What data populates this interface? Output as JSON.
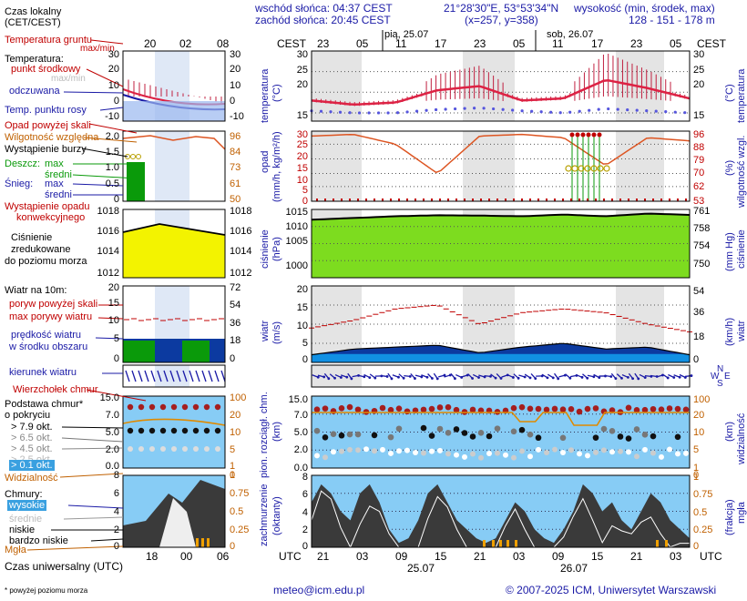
{
  "header": {
    "sunrise": "wschód słońca: 04:37 CEST",
    "sunset": "zachód słońca: 20:45 CEST",
    "coords": "21°28'30\"E, 53°53'34\"N",
    "grid": "(x=257, y=358)",
    "elevation_title": "wysokość (min, środek, max)",
    "elevation_values": "128 - 151 - 178 m",
    "local_time_label": "Czas lokalny",
    "local_time_zone": "(CET/CEST)",
    "tz": "CEST",
    "day1": "pią, 25.07",
    "day2": "sob, 26.07"
  },
  "left_legend": {
    "soil_temp": "Temperatura gruntu",
    "max_min": "max/min",
    "temperature": "Temperatura:",
    "mid_point": "punkt środkowy",
    "max_min2": "max/min",
    "felt": "odczuwana",
    "dew_point": "Temp. punktu rosy",
    "rain_over_scale": "Opad powyżej skali",
    "humidity": "Wilgotność względna",
    "storm": "Wystąpienie burzy",
    "rain": "Deszcz:",
    "snow": "Śnieg:",
    "max": "max",
    "mean": "średni",
    "conv": "Wystąpienie opadu",
    "conv2": "konwekcyjnego",
    "pressure1": "Ciśnienie",
    "pressure2": "zredukowane",
    "pressure3": "do poziomu morza",
    "wind_title": "Wiatr na 10m:",
    "gust_over": "poryw powyżej skali",
    "gust_max": "max porywy wiatru",
    "wind_mean1": "prędkość wiatru",
    "wind_mean2": "w środku obszaru",
    "wind_dir": "kierunek wiatru",
    "cb": "Wierzchołek chmur",
    "cloud_base1": "Podstawa chmur*",
    "cloud_base2": "o pokryciu",
    "okt79": "> 7.9 okt.",
    "okt65": "> 6.5 okt.",
    "okt45": "> 4.5 okt.",
    "okt25": "> 2.5 okt.",
    "okt01": "> 0.1 okt.",
    "visibility": "Widzialność",
    "clouds": "Chmury:",
    "high": "wysokie",
    "medium": "średnie",
    "low": "niskie",
    "very_low": "bardzo niskie",
    "fog": "Mgła",
    "utc_label": "Czas uniwersalny (UTC)",
    "footnote": "* powyżej poziomu morza"
  },
  "mini_ticks": {
    "local": [
      "20",
      "02",
      "08"
    ],
    "utc": [
      "18",
      "00",
      "06"
    ]
  },
  "axes": {
    "temp_l": [
      "30",
      "20",
      "10",
      "0",
      "-10"
    ],
    "temp_r": [
      "30",
      "20",
      "10",
      "0",
      "-10"
    ],
    "rain_l": [
      "2.0",
      "1.5",
      "1.0",
      "0.5",
      "0"
    ],
    "hum_r": [
      "96",
      "84",
      "73",
      "61",
      "50"
    ],
    "press_l": [
      "1018",
      "1016",
      "1014",
      "1012"
    ],
    "press_r": [
      "1018",
      "1016",
      "1014",
      "1012"
    ],
    "wind_l": [
      "20",
      "15",
      "10",
      "5",
      "0"
    ],
    "wind_r": [
      "72",
      "54",
      "36",
      "18",
      "0"
    ],
    "cloud_l": [
      "15.0",
      "7.0",
      "5.0",
      "2.0",
      "0.0"
    ],
    "vis_r": [
      "100",
      "20",
      "10",
      "5",
      "1",
      "0"
    ],
    "oct_l": [
      "8",
      "6",
      "4",
      "2",
      "0"
    ],
    "frac_r": [
      "1",
      "0.75",
      "0.5",
      "0.25",
      "0"
    ],
    "main_temp": [
      "30",
      "25",
      "20",
      "15"
    ],
    "main_rain": [
      "30",
      "25",
      "20",
      "15",
      "10",
      "5",
      "0"
    ],
    "main_hum": [
      "96",
      "88",
      "79",
      "70",
      "62",
      "53"
    ],
    "main_press_l": [
      "1015",
      "1010",
      "1005",
      "1000"
    ],
    "main_press_r": [
      "761",
      "758",
      "754",
      "750"
    ],
    "main_wind_l": [
      "20",
      "15",
      "10",
      "5",
      "0"
    ],
    "main_wind_r": [
      "54",
      "36",
      "18",
      "0"
    ],
    "main_cloud": [
      "15.0",
      "7.0",
      "5.0",
      "2.0",
      "0.0"
    ],
    "main_vis": [
      "100",
      "20",
      "10",
      "5",
      "1",
      "0"
    ],
    "main_oct": [
      "8",
      "6",
      "4",
      "2",
      "0"
    ],
    "main_frac": [
      "1",
      "0.75",
      "0.5",
      "0.25",
      "0"
    ]
  },
  "main_labels": {
    "temperature": "temperatura",
    "temp_unit": "(°C)",
    "rain": "opad",
    "rain_unit": "(mm/h, kg/m²/h)",
    "humidity": "wilgotność wzgl.",
    "hum_unit": "(%)",
    "pressure": "ciśnienie",
    "press_unit": "(hPa)",
    "press_unit_r": "(mm Hg)",
    "wind": "wiatr",
    "wind_unit": "(m/s)",
    "wind_unit_r": "(km/h)",
    "cloud_height": "pion. rozciągł. chm.",
    "cloud_unit": "(km)",
    "visibility": "widzialność",
    "vis_unit": "(km)",
    "cover": "zachmurzenie",
    "cover_unit": "(oktanty)",
    "fog": "mgła",
    "fog_unit": "(frakcja)",
    "compass_n": "N",
    "compass_s": "S",
    "compass_w": "W",
    "compass_e": "E"
  },
  "time_axis": {
    "top_hours": [
      "23",
      "05",
      "11",
      "17",
      "23",
      "05",
      "11",
      "17",
      "23",
      "05"
    ],
    "utc": "UTC",
    "bottom_hours": [
      "21",
      "03",
      "09",
      "15",
      "21",
      "03",
      "09",
      "15",
      "21",
      "03"
    ],
    "date1": "25.07",
    "date2": "26.07"
  },
  "footer": {
    "email": "meteo@icm.edu.pl",
    "copyright": "© 2007-2025 ICM, Uniwersytet Warszawski"
  },
  "colors": {
    "night_band": "#e4e4e4",
    "pressure_fill": "#7ddc1f",
    "temp_line": "#dd2244",
    "dew_point": "#5555dd",
    "humidity": "#dd5522",
    "wind_dark": "#0c3aa0",
    "wind_light": "#13a0ee",
    "sky": "#87ccf5",
    "cloud_dark": "#3a3a3a",
    "fog": "#f0a000"
  },
  "chart_data": [
    {
      "type": "line",
      "title": "temperatura",
      "ylabel": "(°C)",
      "ylim": [
        13,
        30
      ],
      "x": [
        "25.07 21UTC",
        "25.07 03",
        "25.07 09",
        "25.07 15",
        "25.07 21",
        "26.07 03",
        "26.07 09",
        "26.07 15",
        "26.07 21",
        "27.07 03"
      ],
      "series": [
        {
          "name": "temperatura",
          "values": [
            18,
            17,
            17.5,
            20.5,
            21.5,
            18,
            18.5,
            23,
            21,
            18.5
          ]
        },
        {
          "name": "punkt rosy",
          "values": [
            15.5,
            15,
            15,
            15.8,
            16.2,
            15.5,
            15,
            16,
            15.5,
            15
          ]
        }
      ]
    },
    {
      "type": "line",
      "title": "wilgotność wzgl.",
      "ylabel": "(%)",
      "ylim": [
        53,
        96
      ],
      "x": [
        "25.07 21UTC",
        "25.07 03",
        "25.07 09",
        "25.07 15",
        "25.07 21",
        "26.07 03",
        "26.07 09",
        "26.07 15",
        "26.07 21",
        "27.07 03"
      ],
      "series": [
        {
          "name": "wilgotność wzgl.",
          "values": [
            93,
            94,
            88,
            70,
            93,
            94,
            92,
            75,
            92,
            90
          ]
        }
      ]
    },
    {
      "type": "area",
      "title": "ciśnienie",
      "ylabel": "(hPa)",
      "ylim": [
        995,
        1015
      ],
      "x": [
        "25.07 21UTC",
        "25.07 03",
        "25.07 09",
        "25.07 15",
        "25.07 21",
        "26.07 03",
        "26.07 09",
        "26.07 15",
        "26.07 21",
        "27.07 03"
      ],
      "series": [
        {
          "name": "ciśnienie",
          "values": [
            1012,
            1012.5,
            1013,
            1013.3,
            1013.2,
            1013,
            1013.5,
            1013,
            1013.8,
            1013.4
          ]
        }
      ]
    },
    {
      "type": "area",
      "title": "wiatr",
      "ylabel": "(m/s)",
      "ylim": [
        0,
        20
      ],
      "x": [
        "25.07 21UTC",
        "25.07 03",
        "25.07 09",
        "25.07 15",
        "25.07 21",
        "26.07 03",
        "26.07 09",
        "26.07 15",
        "26.07 21",
        "27.07 03"
      ],
      "series": [
        {
          "name": "prędkość wiatru",
          "values": [
            2,
            3.5,
            4,
            4.5,
            2.5,
            4,
            5,
            3.5,
            4,
            2
          ]
        },
        {
          "name": "max porywy wiatru",
          "values": [
            9,
            11,
            14,
            15,
            10,
            13,
            14,
            13,
            10,
            8
          ]
        }
      ]
    }
  ]
}
